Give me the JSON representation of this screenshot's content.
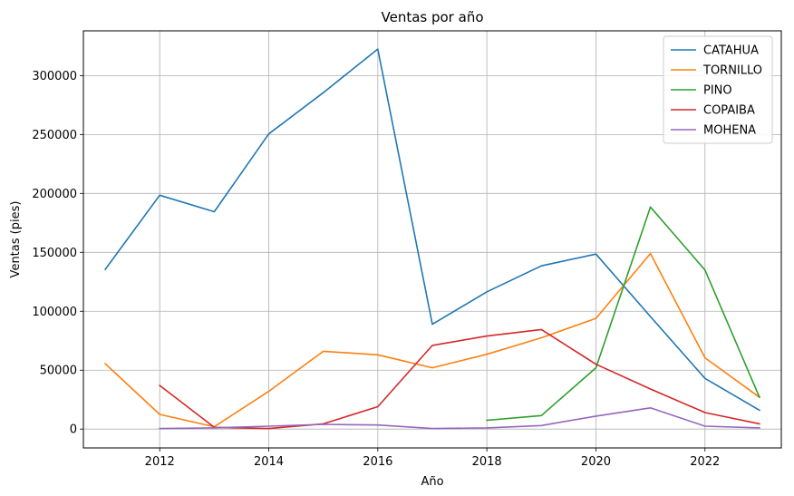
{
  "chart_data": {
    "type": "line",
    "title": "Ventas por año",
    "xlabel": "Año",
    "ylabel": "Ventas (pies)",
    "xlim": [
      2010.6,
      2023.4
    ],
    "ylim": [
      -16000,
      338000
    ],
    "x_ticks": [
      2012,
      2014,
      2016,
      2018,
      2020,
      2022
    ],
    "y_ticks": [
      0,
      50000,
      100000,
      150000,
      200000,
      250000,
      300000
    ],
    "grid": true,
    "legend_position": "top-right",
    "series": [
      {
        "name": "CATAHUA",
        "color": "#1f77b4",
        "points": [
          [
            2011,
            135500
          ],
          [
            2012,
            198500
          ],
          [
            2013,
            184500
          ],
          [
            2014,
            250500
          ],
          [
            2015,
            285500
          ],
          [
            2016,
            322500
          ],
          [
            2017,
            89000
          ],
          [
            2018,
            116500
          ],
          [
            2019,
            138500
          ],
          [
            2020,
            148500
          ],
          [
            2021,
            95500
          ],
          [
            2022,
            43000
          ],
          [
            2023,
            16000
          ]
        ]
      },
      {
        "name": "TORNILLO",
        "color": "#ff7f0e",
        "points": [
          [
            2011,
            55500
          ],
          [
            2012,
            12500
          ],
          [
            2013,
            2000
          ],
          [
            2014,
            32000
          ],
          [
            2015,
            66000
          ],
          [
            2016,
            63000
          ],
          [
            2017,
            52000
          ],
          [
            2018,
            63500
          ],
          [
            2019,
            77500
          ],
          [
            2020,
            94000
          ],
          [
            2021,
            149000
          ],
          [
            2022,
            60500
          ],
          [
            2023,
            27000
          ]
        ]
      },
      {
        "name": "PINO",
        "color": "#2ca02c",
        "points": [
          [
            2018,
            7500
          ],
          [
            2019,
            11500
          ],
          [
            2020,
            52000
          ],
          [
            2021,
            188500
          ],
          [
            2022,
            135000
          ],
          [
            2023,
            27000
          ]
        ]
      },
      {
        "name": "COPAIBA",
        "color": "#d62728",
        "points": [
          [
            2012,
            37000
          ],
          [
            2013,
            1500
          ],
          [
            2014,
            500
          ],
          [
            2015,
            4500
          ],
          [
            2016,
            19000
          ],
          [
            2017,
            71000
          ],
          [
            2018,
            79000
          ],
          [
            2019,
            84500
          ],
          [
            2020,
            55000
          ],
          [
            2021,
            34000
          ],
          [
            2022,
            14000
          ],
          [
            2023,
            4500
          ]
        ]
      },
      {
        "name": "MOHENA",
        "color": "#9467bd",
        "points": [
          [
            2012,
            500
          ],
          [
            2013,
            1000
          ],
          [
            2014,
            2500
          ],
          [
            2015,
            4000
          ],
          [
            2016,
            3500
          ],
          [
            2017,
            500
          ],
          [
            2018,
            1000
          ],
          [
            2019,
            3000
          ],
          [
            2020,
            11000
          ],
          [
            2021,
            18000
          ],
          [
            2022,
            2500
          ],
          [
            2023,
            1000
          ]
        ]
      }
    ]
  }
}
